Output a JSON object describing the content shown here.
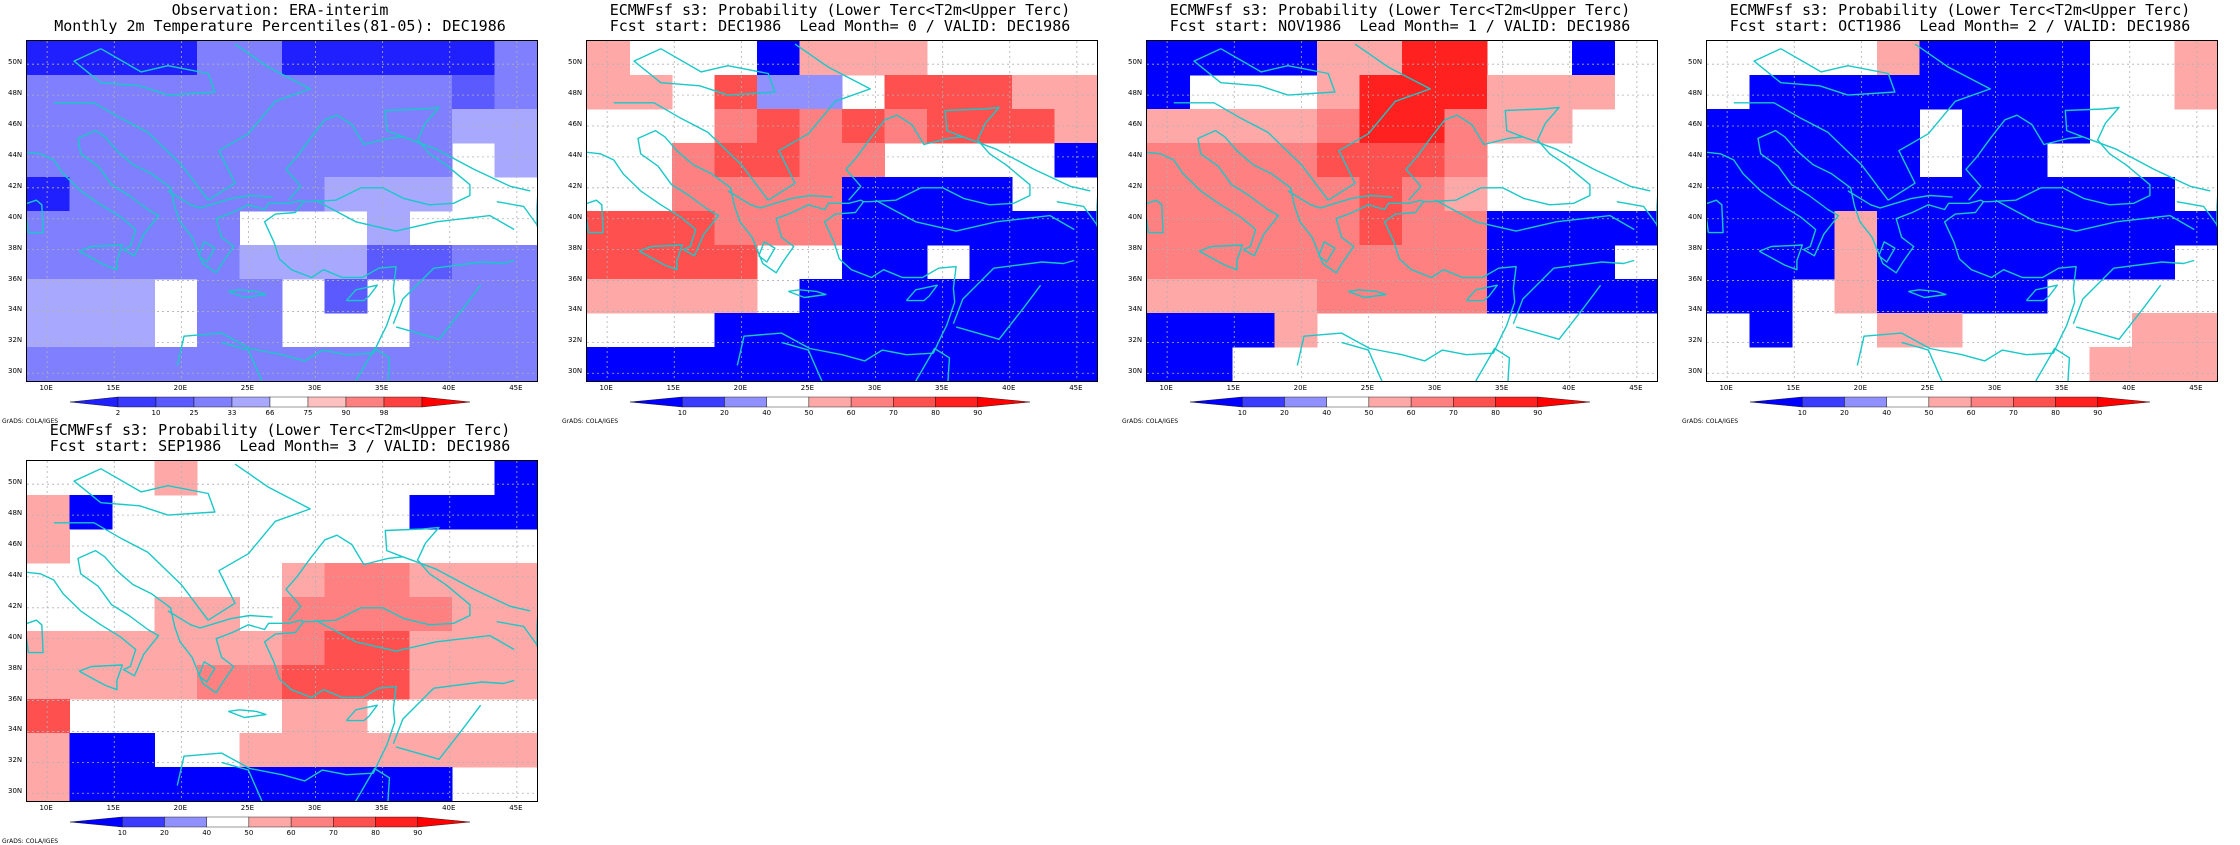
{
  "watermark": "GrADS: COLA/IGES",
  "lat_labels": [
    "50N",
    "48N",
    "46N",
    "44N",
    "42N",
    "40N",
    "38N",
    "36N",
    "34N",
    "32N",
    "30N"
  ],
  "lon_labels": [
    "10E",
    "15E",
    "20E",
    "25E",
    "30E",
    "35E",
    "40E",
    "45E"
  ],
  "colors": {
    "coast": "#19c8c8",
    "grid": "#b0b0b0",
    "obs_scale": [
      "#2020ff",
      "#3a3aff",
      "#5a5aff",
      "#8080ff",
      "#a8a8ff",
      "#ffffff",
      "#ffc0c0",
      "#ff8080",
      "#ff4040",
      "#ff0000"
    ],
    "prob_scale": [
      "#0000ff",
      "#3c3cff",
      "#9090ff",
      "#ffffff",
      "#ffa8a8",
      "#ff8080",
      "#ff5050",
      "#ff2020",
      "#ff0000"
    ]
  },
  "panels": [
    {
      "id": "obs",
      "title_line1": "Observation: ERA-interim",
      "title_line2": "Monthly 2m Temperature Percentiles(81-05): DEC1986",
      "colorbar_labels": [
        "2",
        "10",
        "25",
        "33",
        "66",
        "75",
        "90",
        "98"
      ],
      "scale": "obs",
      "grid": [
        "000033000003",
        "333333333323",
        "333333333344",
        "333333333354",
        "033333344455",
        "333335554555",
        "333334442233",
        "444533525333",
        "444533555333",
        "333333333333"
      ]
    },
    {
      "id": "lead0",
      "title_line1": "ECMWFsf s3: Probability (Lower Terc<T2m<Upper Terc)",
      "title_line2": "Fcst start: DEC1986  Lead Month= 0 / VALID: DEC1986",
      "colorbar_labels": [
        "10",
        "20",
        "40",
        "50",
        "60",
        "70",
        "80",
        "90"
      ],
      "scale": "prob",
      "grid": [
        "433304443333",
        "443622366644",
        "333565656664",
        "335665533330",
        "335555000033",
        "666555000000",
        "666633003000",
        "444430000000",
        "333000000000",
        "000000000000"
      ]
    },
    {
      "id": "lead1",
      "title_line1": "ECMWFsf s3: Probability (Lower Terc<T2m<Upper Terc)",
      "title_line2": "Fcst start: NOV1986  Lead Month= 1 / VALID: DEC1986",
      "colorbar_labels": [
        "10",
        "20",
        "40",
        "50",
        "60",
        "70",
        "80",
        "90"
      ],
      "scale": "prob",
      "grid": [
        "000044773303",
        "033347774443",
        "444457754433",
        "555566653333",
        "555556543333",
        "555556550000",
        "555555550003",
        "444455550000",
        "000433333333",
        "003333333333"
      ]
    },
    {
      "id": "lead2",
      "title_line1": "ECMWFsf s3: Probability (Lower Terc<T2m<Upper Terc)",
      "title_line2": "Fcst start: OCT1986  Lead Month= 2 / VALID: DEC1986",
      "colorbar_labels": [
        "10",
        "20",
        "40",
        "50",
        "60",
        "70",
        "80",
        "90"
      ],
      "scale": "prob",
      "grid": [
        "333340000334",
        "300000000334",
        "000003000333",
        "000003003333",
        "000000000003",
        "000400000000",
        "000400000003",
        "003400003333",
        "303344333344",
        "333333333444"
      ]
    },
    {
      "id": "lead3",
      "title_line1": "ECMWFsf s3: Probability (Lower Terc<T2m<Upper Terc)",
      "title_line2": "Fcst start: SEP1986  Lead Month= 3 / VALID: DEC1986",
      "colorbar_labels": [
        "10",
        "20",
        "40",
        "50",
        "60",
        "70",
        "80",
        "90"
      ],
      "scale": "prob",
      "grid": [
        "333433333330",
        "403333333000",
        "433333333333",
        "333333455444",
        "333443555544",
        "444444566444",
        "444455666444",
        "633333443333",
        "400334444444",
        "400000000033"
      ]
    }
  ]
}
